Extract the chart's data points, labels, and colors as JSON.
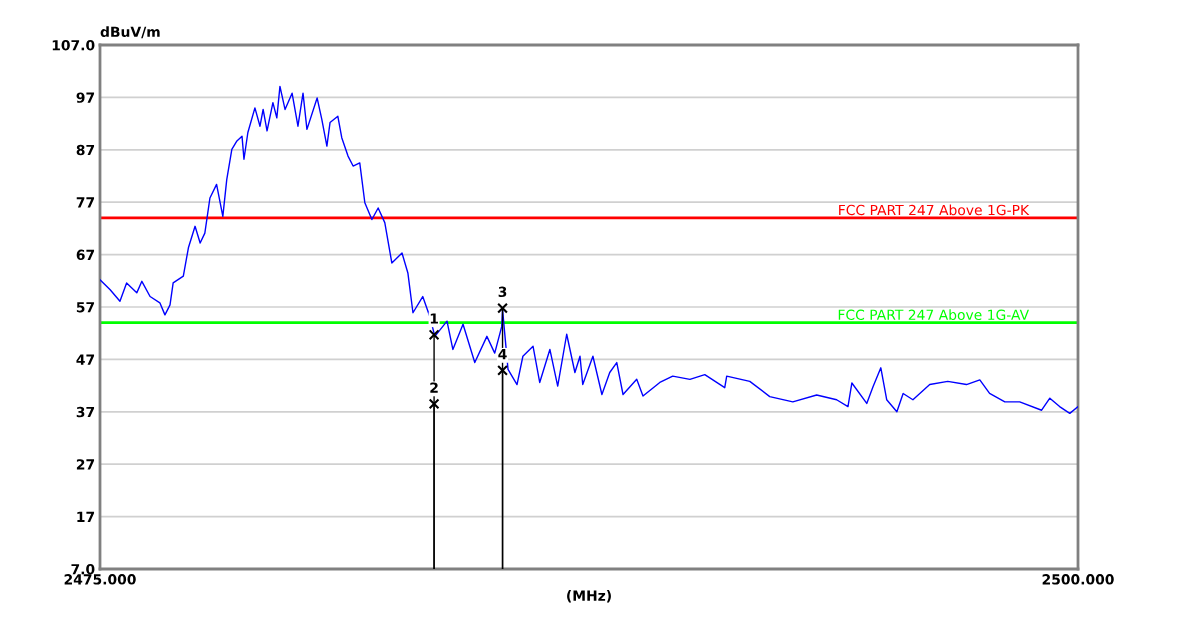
{
  "chart_data": {
    "type": "line",
    "ylabel": "dBuV/m",
    "xlabel": "(MHz)",
    "xlim": [
      2475,
      2500
    ],
    "xticks": [
      {
        "value": 2475,
        "label": "2475.000"
      },
      {
        "value": 2500,
        "label": "2500.000"
      }
    ],
    "ylim": [
      7,
      107
    ],
    "yticks": [
      {
        "value": 7,
        "label": "7.0"
      },
      17,
      27,
      37,
      47,
      57,
      67,
      77,
      87,
      97,
      {
        "value": 107,
        "label": "107.0"
      }
    ],
    "grid": "y",
    "series": [
      {
        "color": "#0000ff",
        "x": [
          2475.0,
          2475.26,
          2475.51,
          2475.68,
          2475.94,
          2476.07,
          2476.28,
          2476.53,
          2476.66,
          2476.79,
          2476.87,
          2477.13,
          2477.26,
          2477.43,
          2477.56,
          2477.68,
          2477.81,
          2477.98,
          2478.14,
          2478.24,
          2478.37,
          2478.5,
          2478.63,
          2478.68,
          2478.78,
          2478.96,
          2479.09,
          2479.17,
          2479.27,
          2479.42,
          2479.52,
          2479.6,
          2479.73,
          2479.91,
          2480.06,
          2480.19,
          2480.29,
          2480.55,
          2480.67,
          2480.8,
          2480.88,
          2481.08,
          2481.18,
          2481.34,
          2481.47,
          2481.64,
          2481.77,
          2481.95,
          2482.11,
          2482.28,
          2482.46,
          2482.72,
          2482.87,
          2483.0,
          2483.25,
          2483.43,
          2483.56,
          2483.87,
          2484.02,
          2484.28,
          2484.58,
          2484.89,
          2485.09,
          2485.27,
          2485.29,
          2485.43,
          2485.66,
          2485.81,
          2486.07,
          2486.24,
          2486.5,
          2486.7,
          2486.93,
          2487.14,
          2487.27,
          2487.34,
          2487.6,
          2487.83,
          2488.03,
          2488.21,
          2488.37,
          2488.72,
          2488.88,
          2489.31,
          2489.64,
          2490.08,
          2490.46,
          2490.97,
          2491.02,
          2491.61,
          2492.12,
          2492.71,
          2493.32,
          2493.83,
          2494.12,
          2494.22,
          2494.6,
          2494.76,
          2494.96,
          2495.11,
          2495.37,
          2495.53,
          2495.78,
          2496.21,
          2496.67,
          2497.15,
          2497.49,
          2497.74,
          2498.13,
          2498.51,
          2499.07,
          2499.28,
          2499.53,
          2499.79,
          2500.0
        ],
        "values": [
          62.2,
          60.3,
          58.1,
          61.6,
          59.7,
          61.9,
          59.0,
          57.8,
          55.5,
          57.4,
          61.6,
          62.9,
          68.3,
          72.4,
          69.2,
          71.1,
          77.8,
          80.4,
          74.3,
          81.3,
          87.1,
          88.7,
          89.6,
          85.2,
          90.3,
          95.0,
          91.5,
          94.7,
          90.6,
          96.0,
          93.1,
          99.1,
          94.7,
          97.8,
          91.5,
          97.8,
          90.9,
          96.9,
          92.8,
          87.7,
          92.2,
          93.4,
          89.3,
          85.8,
          83.9,
          84.5,
          76.9,
          73.7,
          75.9,
          73.1,
          65.4,
          67.3,
          63.5,
          55.9,
          59.0,
          55.2,
          51.4,
          54.3,
          48.9,
          53.7,
          46.4,
          51.4,
          48.2,
          53.3,
          56.5,
          45.1,
          42.2,
          47.6,
          49.5,
          42.6,
          48.9,
          41.9,
          51.8,
          44.5,
          47.6,
          42.2,
          47.6,
          40.3,
          44.5,
          46.4,
          40.3,
          43.2,
          40.0,
          42.6,
          43.8,
          43.2,
          44.1,
          41.6,
          43.8,
          42.8,
          39.9,
          38.9,
          40.2,
          39.3,
          38.0,
          42.5,
          38.6,
          41.8,
          45.4,
          39.3,
          37.0,
          40.5,
          39.3,
          42.2,
          42.8,
          42.2,
          43.1,
          40.5,
          38.9,
          38.9,
          37.3,
          39.6,
          38.0,
          36.7,
          38.0
        ]
      },
      {
        "type": "lollipop",
        "color": "#000000",
        "marker": "cross",
        "x": [
          2483.54,
          2483.54,
          2485.29,
          2485.29
        ],
        "values": [
          51.7,
          38.5,
          56.8,
          44.9
        ]
      }
    ],
    "ref_lines": [
      {
        "axis": "y",
        "value": 74,
        "label": "FCC PART 247 Above 1G-PK",
        "color": "#ff0000"
      },
      {
        "axis": "y",
        "value": 54,
        "label": "FCC PART 247 Above 1G-AV",
        "color": "#00ff00"
      }
    ],
    "annotations": [
      "1",
      "2",
      "3",
      "4"
    ]
  }
}
